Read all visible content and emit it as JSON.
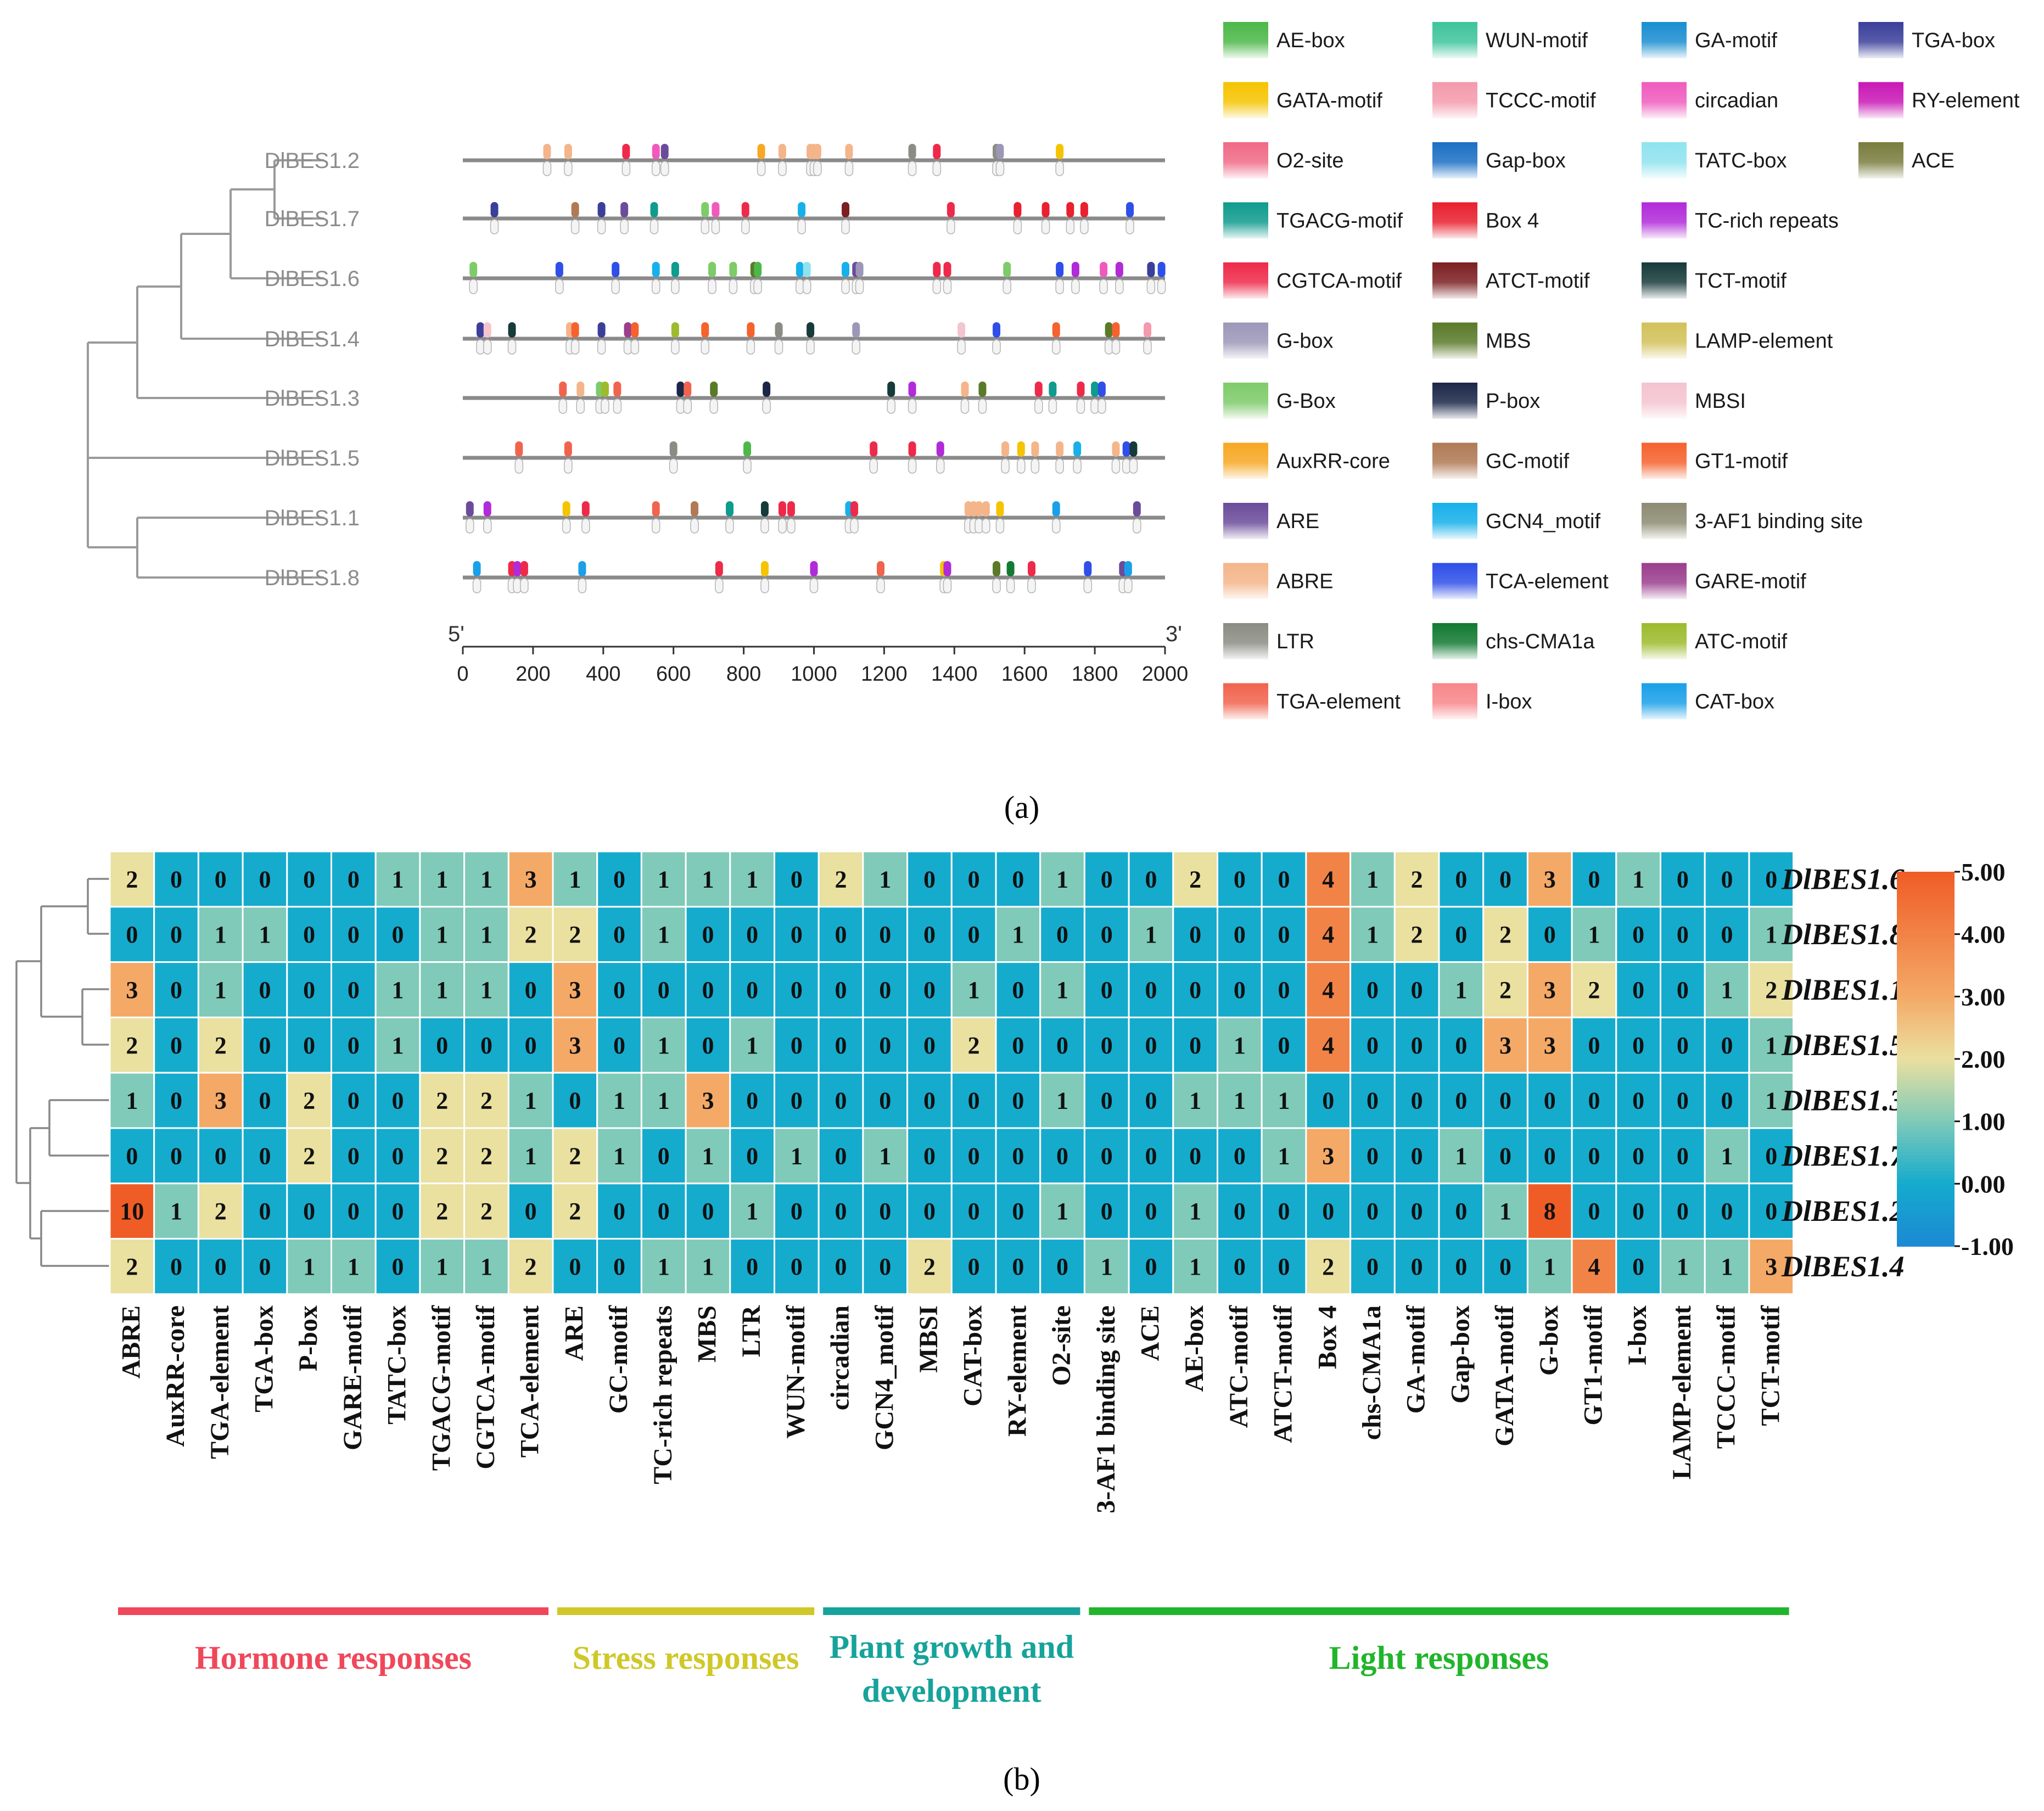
{
  "panel_labels": {
    "a": "(a)",
    "b": "(b)"
  },
  "chart_data": [
    {
      "type": "scatter",
      "title": "Promoter cis-acting element distribution",
      "genes": [
        "DlBES1.2",
        "DlBES1.7",
        "DlBES1.6",
        "DlBES1.4",
        "DlBES1.3",
        "DlBES1.5",
        "DlBES1.1",
        "DlBES1.8"
      ],
      "axis": {
        "start_label": "5'",
        "end_label": "3'",
        "xlim": [
          0,
          2000
        ],
        "ticks": [
          0,
          200,
          400,
          600,
          800,
          1000,
          1200,
          1400,
          1600,
          1800,
          2000
        ]
      },
      "legend": [
        {
          "name": "AE-box",
          "color": "#4cb848"
        },
        {
          "name": "GATA-motif",
          "color": "#f5c400"
        },
        {
          "name": "O2-site",
          "color": "#f06a86"
        },
        {
          "name": "TGACG-motif",
          "color": "#0f9b8e"
        },
        {
          "name": "CGTCA-motif",
          "color": "#ee2a4a"
        },
        {
          "name": "G-box",
          "color": "#9c97b8"
        },
        {
          "name": "G-Box",
          "color": "#7ecb6a"
        },
        {
          "name": "AuxRR-core",
          "color": "#f7a823"
        },
        {
          "name": "ARE",
          "color": "#6b4c9a"
        },
        {
          "name": "ABRE",
          "color": "#f4b58a"
        },
        {
          "name": "LTR",
          "color": "#8b8d84"
        },
        {
          "name": "TGA-element",
          "color": "#f0644e"
        },
        {
          "name": "WUN-motif",
          "color": "#3ec49b"
        },
        {
          "name": "TCCC-motif",
          "color": "#f49aac"
        },
        {
          "name": "Gap-box",
          "color": "#1b6fc4"
        },
        {
          "name": "Box 4",
          "color": "#e8202f"
        },
        {
          "name": "ATCT-motif",
          "color": "#7c1f22"
        },
        {
          "name": "MBS",
          "color": "#5a7a2a"
        },
        {
          "name": "P-box",
          "color": "#1b2748"
        },
        {
          "name": "GC-motif",
          "color": "#b07a55"
        },
        {
          "name": "GCN4_motif",
          "color": "#17b0ea"
        },
        {
          "name": "TCA-element",
          "color": "#2f4fe8"
        },
        {
          "name": "chs-CMA1a",
          "color": "#127a32"
        },
        {
          "name": "I-box",
          "color": "#f7878a"
        },
        {
          "name": "GA-motif",
          "color": "#1a8ed0"
        },
        {
          "name": "circadian",
          "color": "#ef5bbd"
        },
        {
          "name": "TATC-box",
          "color": "#8fe3ef"
        },
        {
          "name": "TC-rich repeats",
          "color": "#b12bd9"
        },
        {
          "name": "TCT-motif",
          "color": "#173a3a"
        },
        {
          "name": "LAMP-element",
          "color": "#d2c15a"
        },
        {
          "name": "MBSI",
          "color": "#f4c4cf"
        },
        {
          "name": "GT1-motif",
          "color": "#f5622d"
        },
        {
          "name": "3-AF1 binding site",
          "color": "#8d8b72"
        },
        {
          "name": "GARE-motif",
          "color": "#9b3e8e"
        },
        {
          "name": "ATC-motif",
          "color": "#9dbb2d"
        },
        {
          "name": "CAT-box",
          "color": "#1aa0e8"
        },
        {
          "name": "TGA-box",
          "color": "#3b3f9a"
        },
        {
          "name": "RY-element",
          "color": "#c918b6"
        },
        {
          "name": "ACE",
          "color": "#7a7d3e"
        }
      ],
      "elements": {
        "DlBES1.2": [
          [
            240,
            "ABRE"
          ],
          [
            300,
            "ABRE"
          ],
          [
            465,
            "CGTCA-motif"
          ],
          [
            550,
            "circadian"
          ],
          [
            575,
            "ARE"
          ],
          [
            850,
            "AuxRR-core"
          ],
          [
            910,
            "ABRE"
          ],
          [
            990,
            "ABRE"
          ],
          [
            1000,
            "ABRE"
          ],
          [
            1010,
            "ABRE"
          ],
          [
            1100,
            "ABRE"
          ],
          [
            1280,
            "LTR"
          ],
          [
            1350,
            "CGTCA-motif"
          ],
          [
            1520,
            "LTR"
          ],
          [
            1530,
            "G-box"
          ],
          [
            1700,
            "GATA-motif"
          ]
        ],
        "DlBES1.7": [
          [
            90,
            "TGA-box"
          ],
          [
            320,
            "GC-motif"
          ],
          [
            395,
            "TGA-box"
          ],
          [
            460,
            "ARE"
          ],
          [
            545,
            "TGACG-motif"
          ],
          [
            690,
            "G-Box"
          ],
          [
            720,
            "circadian"
          ],
          [
            805,
            "CGTCA-motif"
          ],
          [
            965,
            "GCN4_motif"
          ],
          [
            1090,
            "ATCT-motif"
          ],
          [
            1390,
            "CGTCA-motif"
          ],
          [
            1580,
            "Box 4"
          ],
          [
            1660,
            "Box 4"
          ],
          [
            1730,
            "Box 4"
          ],
          [
            1770,
            "Box 4"
          ],
          [
            1900,
            "TCA-element"
          ]
        ],
        "DlBES1.6": [
          [
            30,
            "G-Box"
          ],
          [
            275,
            "TCA-element"
          ],
          [
            435,
            "TCA-element"
          ],
          [
            550,
            "GCN4_motif"
          ],
          [
            605,
            "TGACG-motif"
          ],
          [
            710,
            "G-Box"
          ],
          [
            770,
            "G-Box"
          ],
          [
            830,
            "MBS"
          ],
          [
            840,
            "AE-box"
          ],
          [
            960,
            "GCN4_motif"
          ],
          [
            980,
            "TATC-box"
          ],
          [
            1090,
            "GCN4_motif"
          ],
          [
            1120,
            "ARE"
          ],
          [
            1130,
            "G-box"
          ],
          [
            1350,
            "CGTCA-motif"
          ],
          [
            1380,
            "CGTCA-motif"
          ],
          [
            1550,
            "G-Box"
          ],
          [
            1700,
            "TCA-element"
          ],
          [
            1745,
            "TC-rich repeats"
          ],
          [
            1825,
            "circadian"
          ],
          [
            1870,
            "TC-rich repeats"
          ],
          [
            1960,
            "TGA-box"
          ],
          [
            1990,
            "TCA-element"
          ]
        ],
        "DlBES1.4": [
          [
            50,
            "TGA-box"
          ],
          [
            70,
            "MBSI"
          ],
          [
            140,
            "TCT-motif"
          ],
          [
            305,
            "ABRE"
          ],
          [
            320,
            "GT1-motif"
          ],
          [
            395,
            "TGA-box"
          ],
          [
            470,
            "GARE-motif"
          ],
          [
            490,
            "GT1-motif"
          ],
          [
            605,
            "ATC-motif"
          ],
          [
            690,
            "GT1-motif"
          ],
          [
            820,
            "GT1-motif"
          ],
          [
            900,
            "LTR"
          ],
          [
            990,
            "TCT-motif"
          ],
          [
            1120,
            "G-box"
          ],
          [
            1420,
            "MBSI"
          ],
          [
            1520,
            "TCA-element"
          ],
          [
            1690,
            "GT1-motif"
          ],
          [
            1840,
            "MBS"
          ],
          [
            1860,
            "GT1-motif"
          ],
          [
            1950,
            "TCCC-motif"
          ]
        ],
        "DlBES1.3": [
          [
            285,
            "TGA-element"
          ],
          [
            335,
            "ABRE"
          ],
          [
            390,
            "G-Box"
          ],
          [
            405,
            "ATC-motif"
          ],
          [
            440,
            "TGA-element"
          ],
          [
            620,
            "P-box"
          ],
          [
            640,
            "TGA-element"
          ],
          [
            715,
            "MBS"
          ],
          [
            865,
            "P-box"
          ],
          [
            1220,
            "TCT-motif"
          ],
          [
            1280,
            "TC-rich repeats"
          ],
          [
            1430,
            "ABRE"
          ],
          [
            1480,
            "MBS"
          ],
          [
            1640,
            "CGTCA-motif"
          ],
          [
            1680,
            "TGACG-motif"
          ],
          [
            1760,
            "CGTCA-motif"
          ],
          [
            1800,
            "TGACG-motif"
          ],
          [
            1820,
            "TCA-element"
          ]
        ],
        "DlBES1.5": [
          [
            160,
            "TGA-element"
          ],
          [
            300,
            "TGA-element"
          ],
          [
            600,
            "LTR"
          ],
          [
            810,
            "AE-box"
          ],
          [
            1170,
            "CGTCA-motif"
          ],
          [
            1280,
            "CGTCA-motif"
          ],
          [
            1360,
            "TC-rich repeats"
          ],
          [
            1545,
            "ABRE"
          ],
          [
            1590,
            "GATA-motif"
          ],
          [
            1630,
            "ABRE"
          ],
          [
            1700,
            "ABRE"
          ],
          [
            1750,
            "GCN4_motif"
          ],
          [
            1860,
            "ABRE"
          ],
          [
            1890,
            "TCA-element"
          ],
          [
            1910,
            "TCT-motif"
          ]
        ],
        "DlBES1.1": [
          [
            20,
            "ARE"
          ],
          [
            70,
            "TC-rich repeats"
          ],
          [
            295,
            "GATA-motif"
          ],
          [
            350,
            "CGTCA-motif"
          ],
          [
            550,
            "TGA-element"
          ],
          [
            660,
            "GC-motif"
          ],
          [
            760,
            "TGACG-motif"
          ],
          [
            860,
            "TCT-motif"
          ],
          [
            910,
            "CGTCA-motif"
          ],
          [
            935,
            "CGTCA-motif"
          ],
          [
            1100,
            "GCN4_motif"
          ],
          [
            1115,
            "CGTCA-motif"
          ],
          [
            1440,
            "ABRE"
          ],
          [
            1455,
            "ABRE"
          ],
          [
            1470,
            "ABRE"
          ],
          [
            1490,
            "ABRE"
          ],
          [
            1530,
            "GATA-motif"
          ],
          [
            1690,
            "CAT-box"
          ],
          [
            1920,
            "ARE"
          ]
        ],
        "DlBES1.8": [
          [
            40,
            "CAT-box"
          ],
          [
            140,
            "CGTCA-motif"
          ],
          [
            155,
            "TC-rich repeats"
          ],
          [
            175,
            "CGTCA-motif"
          ],
          [
            340,
            "CAT-box"
          ],
          [
            730,
            "CGTCA-motif"
          ],
          [
            860,
            "GATA-motif"
          ],
          [
            1000,
            "TC-rich repeats"
          ],
          [
            1190,
            "TGA-element"
          ],
          [
            1370,
            "GATA-motif"
          ],
          [
            1380,
            "TC-rich repeats"
          ],
          [
            1520,
            "MBS"
          ],
          [
            1560,
            "chs-CMA1a"
          ],
          [
            1620,
            "CGTCA-motif"
          ],
          [
            1780,
            "TCA-element"
          ],
          [
            1880,
            "ARE"
          ],
          [
            1895,
            "CAT-box"
          ]
        ]
      }
    },
    {
      "type": "heatmap",
      "title": "",
      "rows": [
        "DlBES1.6",
        "DlBES1.8",
        "DlBES1.1",
        "DlBES1.5",
        "DlBES1.3",
        "DlBES1.7",
        "DlBES1.2",
        "DlBES1.4"
      ],
      "columns": [
        "ABRE",
        "AuxRR-core",
        "TGA-element",
        "TGA-box",
        "P-box",
        "GARE-motif",
        "TATC-box",
        "TGACG-motif",
        "CGTCA-motif",
        "TCA-element",
        "ARE",
        "GC-motif",
        "TC-rich repeats",
        "MBS",
        "LTR",
        "WUN-motif",
        "circadian",
        "GCN4_motif",
        "MBSI",
        "CAT-box",
        "RY-element",
        "O2-site",
        "3-AF1 binding site",
        "ACE",
        "AE-box",
        "ATC-motif",
        "ATCT-motif",
        "Box 4",
        "chs-CMA1a",
        "GA-motif",
        "Gap-box",
        "GATA-motif",
        "G-box",
        "GT1-motif",
        "I-box",
        "LAMP-element",
        "TCCC-motif",
        "TCT-motif"
      ],
      "values": [
        [
          2,
          0,
          0,
          0,
          0,
          0,
          1,
          1,
          1,
          3,
          1,
          0,
          1,
          1,
          1,
          0,
          2,
          1,
          0,
          0,
          0,
          1,
          0,
          0,
          2,
          0,
          0,
          4,
          1,
          2,
          0,
          0,
          3,
          0,
          1,
          0,
          0,
          0
        ],
        [
          0,
          0,
          1,
          1,
          0,
          0,
          0,
          1,
          1,
          2,
          2,
          0,
          1,
          0,
          0,
          0,
          0,
          0,
          0,
          0,
          1,
          0,
          0,
          1,
          0,
          0,
          0,
          4,
          1,
          2,
          0,
          2,
          0,
          1,
          0,
          0,
          0,
          1
        ],
        [
          3,
          0,
          1,
          0,
          0,
          0,
          1,
          1,
          1,
          0,
          3,
          0,
          0,
          0,
          0,
          0,
          0,
          0,
          0,
          1,
          0,
          1,
          0,
          0,
          0,
          0,
          0,
          4,
          0,
          0,
          1,
          2,
          3,
          2,
          0,
          0,
          1,
          2
        ],
        [
          2,
          0,
          2,
          0,
          0,
          0,
          1,
          0,
          0,
          0,
          3,
          0,
          1,
          0,
          1,
          0,
          0,
          0,
          0,
          2,
          0,
          0,
          0,
          0,
          0,
          1,
          0,
          4,
          0,
          0,
          0,
          3,
          3,
          0,
          0,
          0,
          0,
          1
        ],
        [
          1,
          0,
          3,
          0,
          2,
          0,
          0,
          2,
          2,
          1,
          0,
          1,
          1,
          3,
          0,
          0,
          0,
          0,
          0,
          0,
          0,
          1,
          0,
          0,
          1,
          1,
          1,
          0,
          0,
          0,
          0,
          0,
          0,
          0,
          0,
          0,
          0,
          1
        ],
        [
          0,
          0,
          0,
          0,
          2,
          0,
          0,
          2,
          2,
          1,
          2,
          1,
          0,
          1,
          0,
          1,
          0,
          1,
          0,
          0,
          0,
          0,
          0,
          0,
          0,
          0,
          1,
          3,
          0,
          0,
          1,
          0,
          0,
          0,
          0,
          0,
          1,
          0
        ],
        [
          10,
          1,
          2,
          0,
          0,
          0,
          0,
          2,
          2,
          0,
          2,
          0,
          0,
          0,
          1,
          0,
          0,
          0,
          0,
          0,
          0,
          1,
          0,
          0,
          1,
          0,
          0,
          0,
          0,
          0,
          0,
          1,
          8,
          0,
          0,
          0,
          0,
          0
        ],
        [
          2,
          0,
          0,
          0,
          1,
          1,
          0,
          1,
          1,
          2,
          0,
          0,
          1,
          1,
          0,
          0,
          0,
          0,
          2,
          0,
          0,
          0,
          1,
          0,
          1,
          0,
          0,
          2,
          0,
          0,
          0,
          0,
          1,
          4,
          0,
          1,
          1,
          3
        ]
      ],
      "colorbar": {
        "ticks": [
          "5.00",
          "4.00",
          "3.00",
          "2.00",
          "1.00",
          "0.00",
          "-1.00"
        ],
        "range": [
          -1,
          5
        ]
      },
      "categories": [
        {
          "name": "Hormone responses",
          "color": "#f0475a",
          "from": 0,
          "to": 9
        },
        {
          "name": "Stress responses",
          "color": "#cfc828",
          "from": 10,
          "to": 15
        },
        {
          "name": "Plant growth and",
          "name2": "development",
          "color": "#16a39b",
          "from": 16,
          "to": 21
        },
        {
          "name": "Light responses",
          "color": "#21b52b",
          "from": 22,
          "to": 37
        }
      ]
    }
  ]
}
